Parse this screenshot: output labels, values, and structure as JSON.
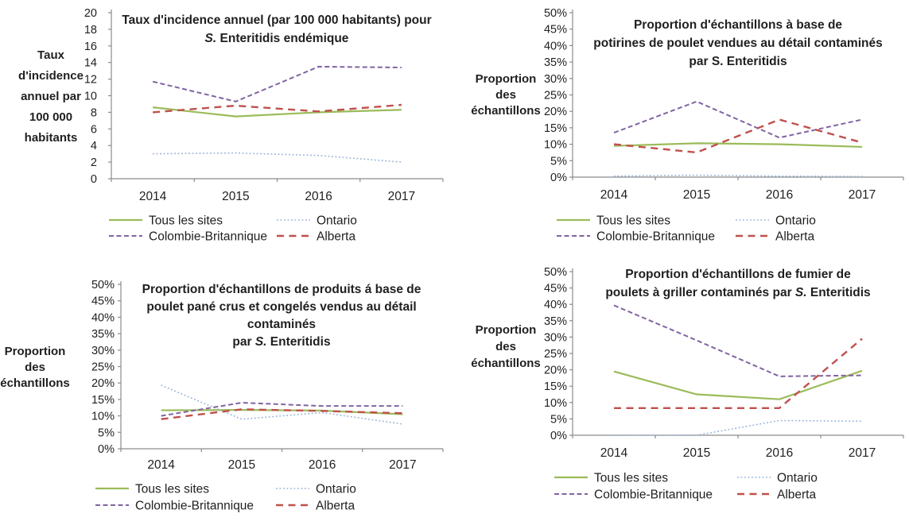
{
  "page": {
    "background": "#FFFFFF",
    "axis_color": "#8C8C8C",
    "text_color": "#1F1F1F"
  },
  "chart_data": [
    {
      "id": "taux-incidence-endemique",
      "type": "line",
      "title_lines": [
        [
          {
            "t": "Taux d'incidence annuel (par 100 000 habitants) pour",
            "i": false
          }
        ],
        [
          {
            "t": "S.",
            "i": true
          },
          {
            "t": " Enteritidis endémique",
            "i": false
          }
        ]
      ],
      "ylabel_lines": [
        "Taux",
        "d'incidence",
        "annuel par",
        "100 000",
        "habitants"
      ],
      "ylim": [
        0,
        20
      ],
      "ystep": 2,
      "tick_suffix": "",
      "grid": false,
      "legend_position": "bottom",
      "categories": [
        "2014",
        "2015",
        "2016",
        "2017"
      ],
      "series": [
        {
          "name": "Tous les sites",
          "color": "#9BBB59",
          "style": "solid",
          "values": [
            8.6,
            7.5,
            8.0,
            8.3
          ]
        },
        {
          "name": "Ontario",
          "color": "#95B3D7",
          "style": "dotted",
          "values": [
            3.0,
            3.1,
            2.8,
            2.0
          ]
        },
        {
          "name": "Colombie-Britannique",
          "color": "#8064A2",
          "style": "dashed",
          "values": [
            11.7,
            9.3,
            13.5,
            13.4
          ]
        },
        {
          "name": "Alberta",
          "color": "#C0504D",
          "style": "longdash",
          "values": [
            8.0,
            8.8,
            8.1,
            8.9
          ]
        }
      ]
    },
    {
      "id": "potirines-poulet-detail",
      "type": "line",
      "title_lines": [
        [
          {
            "t": "Proportion d'échantillons à base de",
            "i": false
          }
        ],
        [
          {
            "t": "potirines de poulet vendues au détail contaminés",
            "i": false
          }
        ],
        [
          {
            "t": "par S. Enteritidis",
            "i": false
          }
        ]
      ],
      "ylabel_lines": [
        "Proportion",
        "des",
        "échantillons"
      ],
      "ylim": [
        0,
        50
      ],
      "ystep": 5,
      "tick_suffix": "%",
      "grid": false,
      "legend_position": "bottom",
      "categories": [
        "2014",
        "2015",
        "2016",
        "2017"
      ],
      "series": [
        {
          "name": "Tous les sites",
          "color": "#9BBB59",
          "style": "solid",
          "values": [
            9.5,
            10.3,
            10.0,
            9.2
          ]
        },
        {
          "name": "Ontario",
          "color": "#95B3D7",
          "style": "dotted",
          "values": [
            0.3,
            0.6,
            0.3,
            0.2
          ]
        },
        {
          "name": "Colombie-Britannique",
          "color": "#8064A2",
          "style": "dashed",
          "values": [
            13.5,
            23.0,
            12.0,
            17.5
          ]
        },
        {
          "name": "Alberta",
          "color": "#C0504D",
          "style": "longdash",
          "values": [
            10.0,
            7.5,
            17.5,
            10.5
          ]
        }
      ]
    },
    {
      "id": "poulet-pane-crus-congeles",
      "type": "line",
      "title_lines": [
        [
          {
            "t": "Proportion d'échantillons de produits á base de",
            "i": false
          }
        ],
        [
          {
            "t": "poulet pané crus et congelés vendus au détail",
            "i": false
          }
        ],
        [
          {
            "t": "contaminés",
            "i": false
          }
        ],
        [
          {
            "t": "par ",
            "i": false
          },
          {
            "t": "S.",
            "i": true
          },
          {
            "t": " Enteritidis",
            "i": false
          }
        ]
      ],
      "ylabel_lines": [
        "Proportion",
        "des",
        "échantillons"
      ],
      "ylim": [
        0,
        50
      ],
      "ystep": 5,
      "tick_suffix": "%",
      "grid": false,
      "legend_position": "bottom",
      "categories": [
        "2014",
        "2015",
        "2016",
        "2017"
      ],
      "series": [
        {
          "name": "Tous les sites",
          "color": "#9BBB59",
          "style": "solid",
          "values": [
            11.7,
            11.8,
            11.6,
            10.5
          ]
        },
        {
          "name": "Ontario",
          "color": "#95B3D7",
          "style": "dotted",
          "values": [
            19.3,
            9.0,
            11.0,
            7.5
          ]
        },
        {
          "name": "Colombie-Britannique",
          "color": "#8064A2",
          "style": "dashed",
          "values": [
            10.0,
            14.0,
            13.0,
            13.0
          ]
        },
        {
          "name": "Alberta",
          "color": "#C0504D",
          "style": "longdash",
          "values": [
            9.0,
            12.0,
            11.5,
            10.8
          ]
        }
      ]
    },
    {
      "id": "fumier-poulets-griller",
      "type": "line",
      "title_lines": [
        [
          {
            "t": "Proportion d'échantillons de fumier de",
            "i": false
          }
        ],
        [
          {
            "t": "poulets à griller contaminés par ",
            "i": false
          },
          {
            "t": "S.",
            "i": true
          },
          {
            "t": " Enteritidis",
            "i": false
          }
        ]
      ],
      "ylabel_lines": [
        "Proportion",
        "des",
        "échantillons"
      ],
      "ylim": [
        0,
        50
      ],
      "ystep": 5,
      "tick_suffix": "%",
      "grid": false,
      "legend_position": "bottom",
      "categories": [
        "2014",
        "2015",
        "2016",
        "2017"
      ],
      "series": [
        {
          "name": "Tous les sites",
          "color": "#9BBB59",
          "style": "solid",
          "values": [
            19.5,
            12.5,
            11.0,
            19.7
          ]
        },
        {
          "name": "Ontario",
          "color": "#95B3D7",
          "style": "dotted",
          "values": [
            0.0,
            0.0,
            4.5,
            4.3
          ]
        },
        {
          "name": "Colombie-Britannique",
          "color": "#8064A2",
          "style": "dashed",
          "values": [
            39.7,
            29.0,
            18.0,
            18.3
          ]
        },
        {
          "name": "Alberta",
          "color": "#C0504D",
          "style": "longdash",
          "values": [
            8.3,
            8.3,
            8.3,
            29.5
          ]
        }
      ]
    }
  ]
}
